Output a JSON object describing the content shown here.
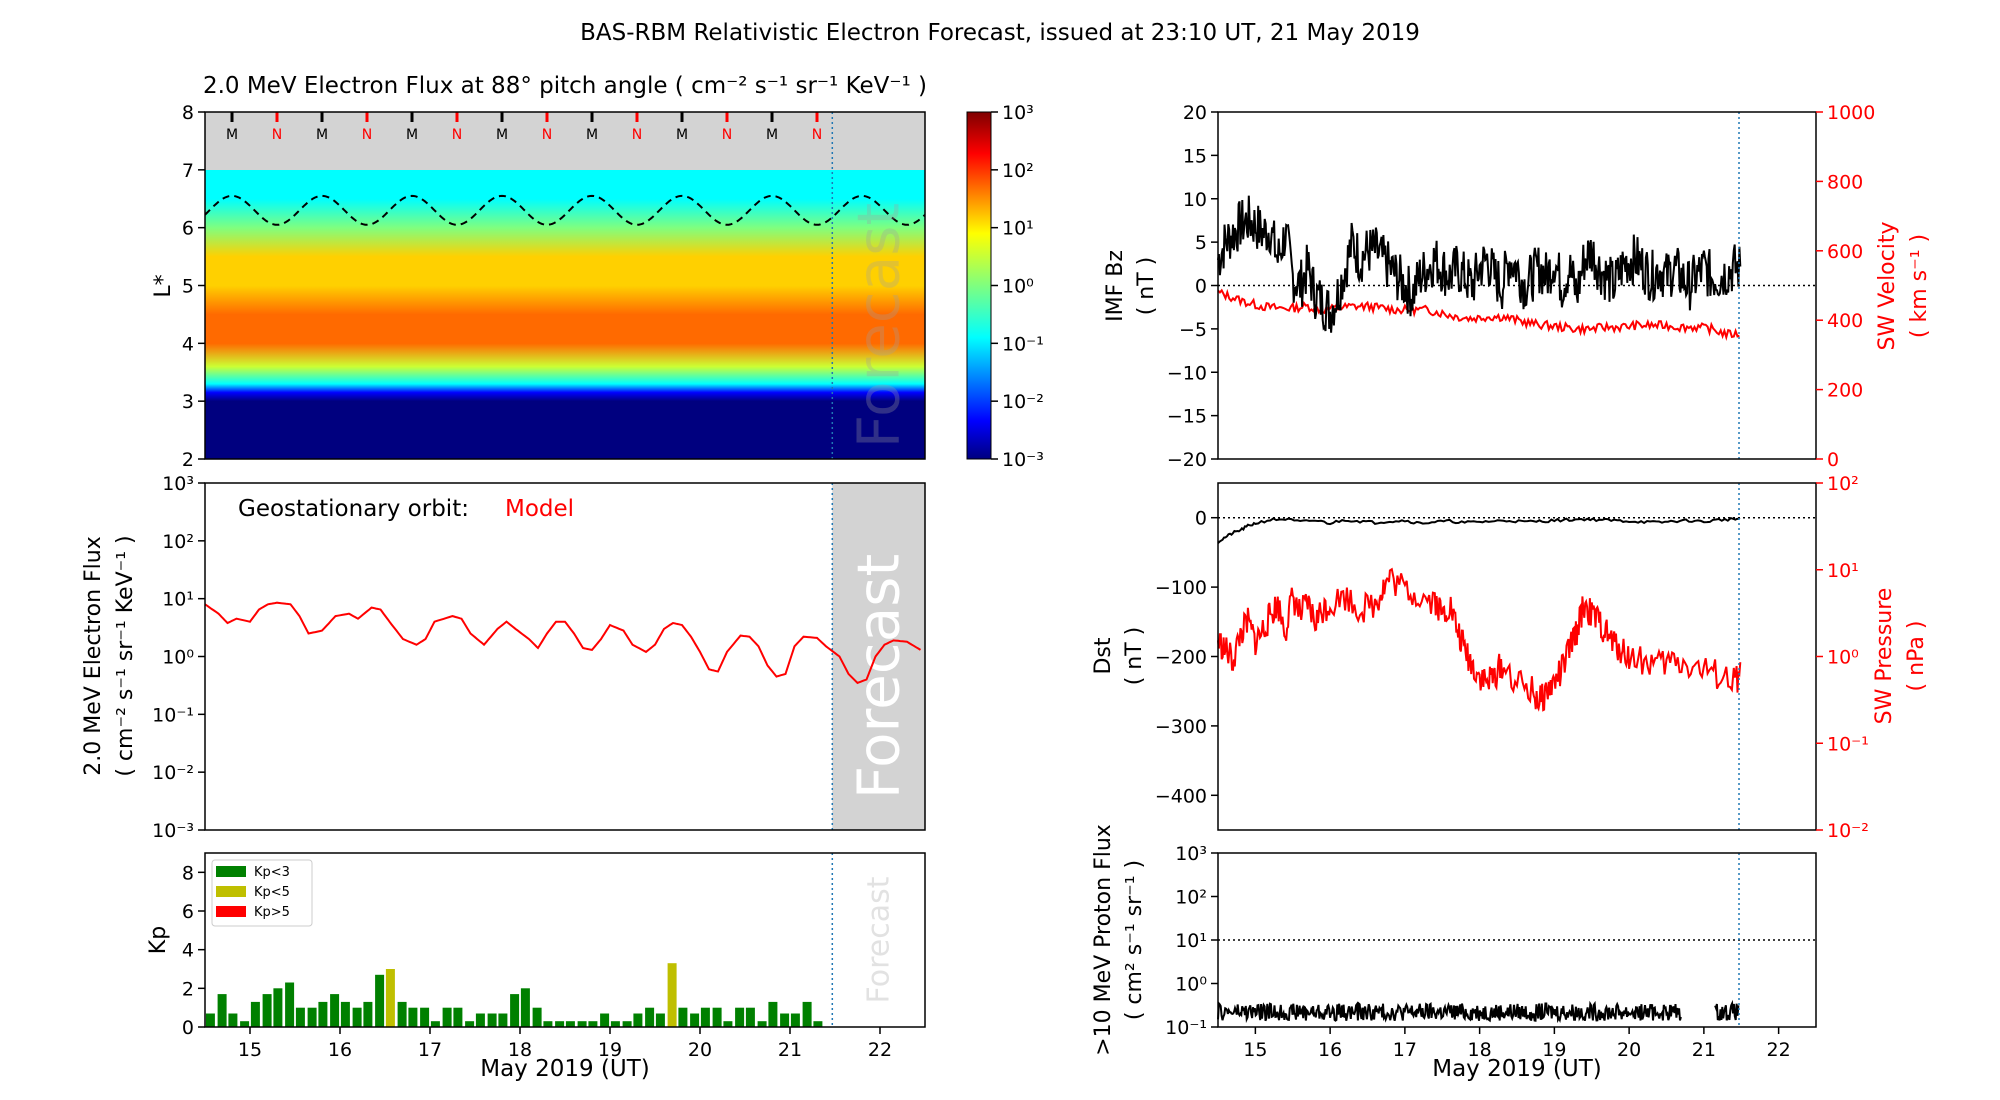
{
  "title": "BAS-RBM Relativistic Electron Forecast, issued at 23:10 UT, 21 May 2019",
  "colors": {
    "model": "#ff0000",
    "black": "#000000",
    "forecast_line": "#1f77b4",
    "forecast_shade": "#d3d3d3",
    "kp_low": "#008000",
    "kp_mid": "#bfbf00",
    "kp_high": "#ff0000"
  },
  "chart_data": [
    {
      "id": "flux-heatmap",
      "type": "heatmap",
      "title": "2.0 MeV Electron Flux at 88° pitch angle ( cm⁻² s⁻¹ sr⁻¹ KeV⁻¹ )",
      "ylabel": "L*",
      "xlim": [
        14.5,
        22.5
      ],
      "ylim": [
        2,
        8
      ],
      "yticks": [
        "2",
        "3",
        "4",
        "5",
        "6",
        "7",
        "8"
      ],
      "mn_markers": [
        "M",
        "N",
        "M",
        "N",
        "M",
        "N",
        "M",
        "N",
        "M",
        "N",
        "M",
        "N",
        "M",
        "N"
      ],
      "mn_x": [
        14.8,
        15.3,
        15.8,
        16.3,
        16.8,
        17.3,
        17.8,
        18.3,
        18.8,
        19.3,
        19.8,
        20.3,
        20.8,
        21.3
      ],
      "forecast_label": "Forecast",
      "forecast_start": 21.47,
      "colorbar": {
        "scale": "log",
        "range": [
          0.001,
          1000
        ],
        "ticks": [
          "10⁻³",
          "10⁻²",
          "10⁻¹",
          "10⁰",
          "10¹",
          "10²",
          "10³"
        ]
      },
      "profile": {
        "L": [
          2,
          3.0,
          3.15,
          3.3,
          3.6,
          4.0,
          4.5,
          5.0,
          5.5,
          6.0,
          6.5,
          7.0
        ],
        "log10_flux": [
          -3,
          -3,
          -1.5,
          0.3,
          1.5,
          2.1,
          2.15,
          2.0,
          1.6,
          1.0,
          0.6,
          0.4
        ]
      },
      "dashed_boundary": {
        "mean_L": 6.3,
        "amplitude": 0.25,
        "period_days": 1.0
      }
    },
    {
      "id": "geo-flux",
      "type": "line",
      "ylabel_lines": [
        "2.0 MeV Electron Flux",
        "( cm⁻² s⁻¹ sr⁻¹ KeV⁻¹ )"
      ],
      "ylog": true,
      "ylim": [
        0.001,
        1000
      ],
      "yticks": [
        "10⁻³",
        "10⁻²",
        "10⁻¹",
        "10⁰",
        "10¹",
        "10²",
        "10³"
      ],
      "xlim": [
        14.5,
        22.5
      ],
      "annotation_label": "Geostationary orbit:",
      "annotation_model": "Model",
      "forecast_label": "Forecast",
      "series": [
        {
          "name": "Model",
          "x": [
            14.5,
            14.65,
            14.75,
            14.85,
            15.0,
            15.1,
            15.2,
            15.3,
            15.45,
            15.55,
            15.65,
            15.8,
            15.95,
            16.1,
            16.2,
            16.35,
            16.45,
            16.55,
            16.7,
            16.85,
            16.95,
            17.05,
            17.25,
            17.35,
            17.45,
            17.6,
            17.75,
            17.85,
            17.95,
            18.1,
            18.2,
            18.3,
            18.4,
            18.5,
            18.6,
            18.7,
            18.8,
            18.9,
            19.0,
            19.15,
            19.25,
            19.4,
            19.5,
            19.6,
            19.7,
            19.8,
            19.9,
            20.0,
            20.1,
            20.2,
            20.3,
            20.45,
            20.55,
            20.65,
            20.75,
            20.85,
            20.95,
            21.05,
            21.15,
            21.3,
            21.4,
            21.55,
            21.65,
            21.75,
            21.85,
            21.95,
            22.05,
            22.15,
            22.3,
            22.45
          ],
          "y": [
            8,
            5.5,
            3.8,
            4.5,
            4,
            6.5,
            8,
            8.5,
            8,
            5,
            2.5,
            2.8,
            5,
            5.5,
            4.5,
            7,
            6.5,
            4,
            2,
            1.6,
            2,
            4,
            5,
            4.5,
            2.5,
            1.6,
            3,
            4,
            3,
            2,
            1.4,
            2.5,
            4,
            4,
            2.5,
            1.4,
            1.3,
            2,
            3.5,
            2.8,
            1.6,
            1.2,
            1.6,
            3,
            3.8,
            3.5,
            2.2,
            1.2,
            0.6,
            0.55,
            1.2,
            2.3,
            2.2,
            1.5,
            0.7,
            0.45,
            0.5,
            1.5,
            2.2,
            2.1,
            1.5,
            1.0,
            0.5,
            0.35,
            0.4,
            1.0,
            1.6,
            1.9,
            1.8,
            1.3
          ]
        }
      ]
    },
    {
      "id": "kp",
      "type": "bar",
      "ylabel": "Kp",
      "xlim": [
        14.5,
        22.5
      ],
      "ylim": [
        0,
        9
      ],
      "yticks": [
        "0",
        "2",
        "4",
        "6",
        "8"
      ],
      "legend": [
        "Kp<3",
        "Kp<5",
        "Kp>5"
      ],
      "forecast_label": "Forecast",
      "bar_width_days": 0.1,
      "x": [
        14.56,
        14.69,
        14.81,
        14.94,
        15.06,
        15.19,
        15.31,
        15.44,
        15.56,
        15.69,
        15.81,
        15.94,
        16.06,
        16.19,
        16.31,
        16.44,
        16.56,
        16.69,
        16.81,
        16.94,
        17.06,
        17.19,
        17.31,
        17.44,
        17.56,
        17.69,
        17.81,
        17.94,
        18.06,
        18.19,
        18.31,
        18.44,
        18.56,
        18.69,
        18.81,
        18.94,
        19.06,
        19.19,
        19.31,
        19.44,
        19.56,
        19.69,
        19.81,
        19.94,
        20.06,
        20.19,
        20.31,
        20.44,
        20.56,
        20.69,
        20.81,
        20.94,
        21.06,
        21.19,
        21.31
      ],
      "values": [
        0.7,
        1.7,
        0.7,
        0.3,
        1.3,
        1.7,
        2.0,
        2.3,
        1.0,
        1.0,
        1.3,
        1.7,
        1.3,
        1.0,
        1.3,
        2.7,
        3.0,
        1.3,
        1.0,
        1.0,
        0.3,
        1.0,
        1.0,
        0.3,
        0.7,
        0.7,
        0.7,
        1.7,
        2.0,
        1.0,
        0.3,
        0.3,
        0.3,
        0.3,
        0.3,
        0.7,
        0.3,
        0.3,
        0.7,
        1.0,
        0.7,
        3.3,
        1.0,
        0.7,
        1.0,
        1.0,
        0.3,
        1.0,
        1.0,
        0.3,
        1.3,
        0.7,
        0.7,
        1.3,
        0.3
      ]
    },
    {
      "id": "imf-sw",
      "type": "line",
      "ylabel_lines": [
        "IMF Bz",
        "( nT )"
      ],
      "ylim": [
        -20,
        20
      ],
      "yticks": [
        "−20",
        "−15",
        "−10",
        "−5",
        "0",
        "5",
        "10",
        "15",
        "20"
      ],
      "y2label_lines": [
        "SW Velocity",
        "( km s⁻¹ )"
      ],
      "y2lim": [
        0,
        1000
      ],
      "y2ticks": [
        "0",
        "200",
        "400",
        "600",
        "800",
        "1000"
      ],
      "xlim": [
        14.5,
        22.5
      ],
      "series": [
        {
          "name": "IMF Bz",
          "x": [
            14.5,
            14.6,
            14.7,
            14.8,
            14.9,
            15.0,
            15.1,
            15.2,
            15.3,
            15.4,
            15.5,
            15.6,
            15.7,
            15.8,
            15.9,
            16.0,
            16.1,
            16.2,
            16.3,
            16.4,
            16.5,
            16.6,
            16.7,
            16.8,
            16.9,
            17.0,
            17.1,
            17.2,
            17.3,
            17.4,
            17.5,
            17.6,
            17.7,
            17.8,
            17.9,
            18.0,
            18.1,
            18.2,
            18.3,
            18.4,
            18.5,
            18.6,
            18.7,
            18.8,
            18.9,
            19.0,
            19.1,
            19.2,
            19.3,
            19.4,
            19.5,
            19.6,
            19.7,
            19.8,
            19.9,
            20.0,
            20.1,
            20.2,
            20.3,
            20.4,
            20.5,
            20.6,
            20.7,
            20.8,
            20.9,
            21.0,
            21.1,
            21.2,
            21.3,
            21.4,
            21.5
          ],
          "y": [
            3,
            5,
            6,
            7,
            7.5,
            7,
            6,
            6.5,
            3,
            6,
            1,
            0,
            2,
            -1,
            -2,
            -3,
            -1,
            2,
            5,
            3,
            4,
            4,
            3,
            2,
            1,
            0,
            -1,
            1,
            2,
            3,
            2,
            1,
            2,
            1,
            0,
            2,
            3,
            1,
            0,
            3,
            2,
            0,
            1,
            2,
            1,
            3,
            0,
            2,
            -1,
            3,
            4,
            2,
            1,
            0,
            2,
            3,
            3,
            2,
            1,
            2,
            1,
            2,
            1,
            0,
            1,
            2,
            1,
            1,
            1.5,
            2,
            2
          ]
        },
        {
          "name": "SW Velocity",
          "x": [
            14.5,
            14.7,
            14.9,
            15.1,
            15.3,
            15.5,
            15.7,
            15.9,
            16.1,
            16.3,
            16.5,
            16.7,
            16.9,
            17.1,
            17.3,
            17.5,
            17.7,
            17.9,
            18.1,
            18.3,
            18.5,
            18.7,
            18.9,
            19.1,
            19.3,
            19.5,
            19.7,
            19.9,
            20.1,
            20.3,
            20.5,
            20.7,
            20.9,
            21.1,
            21.3,
            21.5
          ],
          "y": [
            480,
            465,
            450,
            440,
            435,
            435,
            440,
            430,
            435,
            440,
            440,
            435,
            430,
            430,
            430,
            420,
            410,
            405,
            410,
            410,
            400,
            390,
            385,
            380,
            375,
            375,
            380,
            380,
            385,
            385,
            385,
            380,
            380,
            375,
            360,
            360
          ]
        }
      ]
    },
    {
      "id": "dst-pressure",
      "type": "line",
      "ylabel_lines": [
        "Dst",
        "( nT )"
      ],
      "ylim": [
        -450,
        50
      ],
      "yticks": [
        "−400",
        "−300",
        "−200",
        "−100",
        "0"
      ],
      "y2label_lines": [
        "SW Pressure",
        "( nPa )"
      ],
      "y2log": true,
      "y2lim": [
        0.01,
        100
      ],
      "y2ticks": [
        "10⁻²",
        "10⁻¹",
        "10⁰",
        "10¹",
        "10²"
      ],
      "xlim": [
        14.5,
        22.5
      ],
      "series": [
        {
          "name": "Dst",
          "x": [
            14.5,
            14.6,
            14.7,
            14.8,
            14.9,
            15.0,
            15.2,
            15.4,
            15.6,
            15.8,
            16.0,
            16.2,
            16.4,
            16.6,
            16.8,
            17.0,
            17.2,
            17.4,
            17.6,
            17.8,
            18.0,
            18.2,
            18.4,
            18.6,
            18.8,
            19.0,
            19.2,
            19.4,
            19.6,
            19.8,
            20.0,
            20.2,
            20.4,
            20.6,
            20.8,
            21.0,
            21.2,
            21.4,
            21.5
          ],
          "y": [
            -35,
            -28,
            -22,
            -18,
            -12,
            -8,
            -3,
            -2,
            -6,
            -4,
            -8,
            -3,
            -5,
            -7,
            -5,
            -4,
            -8,
            -6,
            -5,
            -7,
            -6,
            -5,
            -4,
            -6,
            -5,
            -4,
            -3,
            -2,
            -3,
            -4,
            -5,
            -6,
            -7,
            -5,
            -4,
            -6,
            -3,
            -2,
            -2
          ]
        },
        {
          "name": "SW Pressure",
          "x": [
            14.5,
            14.6,
            14.7,
            14.8,
            14.9,
            15.0,
            15.1,
            15.2,
            15.3,
            15.4,
            15.5,
            15.6,
            15.7,
            15.8,
            15.9,
            16.0,
            16.2,
            16.4,
            16.6,
            16.7,
            16.8,
            17.0,
            17.2,
            17.4,
            17.5,
            17.6,
            17.7,
            17.8,
            17.9,
            18.0,
            18.1,
            18.2,
            18.3,
            18.5,
            18.7,
            18.8,
            18.9,
            19.0,
            19.1,
            19.2,
            19.3,
            19.4,
            19.5,
            19.6,
            19.7,
            19.8,
            19.9,
            20.0,
            20.2,
            20.4,
            20.6,
            20.8,
            21.0,
            21.2,
            21.4,
            21.5
          ],
          "y": [
            1.5,
            1.2,
            0.9,
            1.8,
            2.5,
            1.5,
            2.0,
            3.0,
            4.0,
            2.0,
            5.0,
            3.0,
            4.0,
            2.5,
            3.5,
            4.0,
            5.0,
            3.5,
            4.0,
            6.0,
            8.0,
            6.0,
            5.0,
            4.5,
            3.0,
            4.0,
            2.0,
            1.2,
            0.8,
            0.6,
            0.5,
            0.6,
            0.8,
            0.5,
            0.4,
            0.3,
            0.4,
            0.5,
            0.7,
            1.2,
            2.0,
            4.0,
            3.0,
            2.5,
            1.8,
            1.4,
            1.2,
            1.0,
            0.9,
            0.8,
            0.9,
            0.8,
            0.7,
            0.6,
            0.5,
            0.6
          ]
        }
      ]
    },
    {
      "id": "proton",
      "type": "line",
      "ylabel_lines": [
        ">10 MeV Proton Flux",
        "( cm² s⁻¹ sr⁻¹ )"
      ],
      "ylog": true,
      "ylim": [
        0.1,
        1000
      ],
      "yticks": [
        "10⁻¹",
        "10⁰",
        "10¹",
        "10²",
        "10³"
      ],
      "threshold": 10,
      "xlim": [
        14.5,
        22.5
      ],
      "series": [
        {
          "name": "Proton",
          "segments": [
            [
              14.5,
              20.7
            ],
            [
              21.15,
              21.47
            ]
          ],
          "typical": 0.22
        }
      ]
    }
  ],
  "xticks": [
    "15",
    "16",
    "17",
    "18",
    "19",
    "20",
    "21",
    "22"
  ],
  "xlabel": "May 2019 (UT)"
}
